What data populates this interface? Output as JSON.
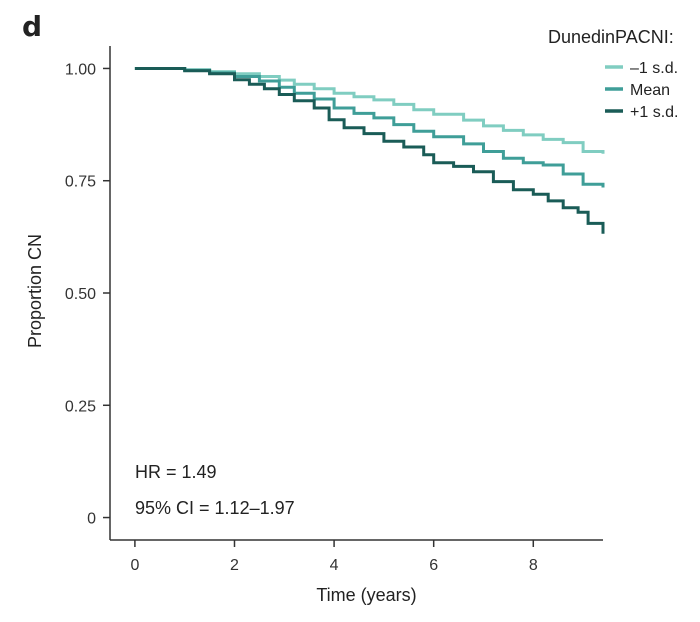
{
  "panel_label": "d",
  "chart_data": {
    "type": "line",
    "step": true,
    "xlabel": "Time (years)",
    "ylabel": "Proportion CN",
    "xlim": [
      -0.5,
      9.4
    ],
    "ylim": [
      -0.05,
      1.05
    ],
    "xticks": [
      0,
      2,
      4,
      6,
      8
    ],
    "yticks": [
      0,
      0.25,
      0.5,
      0.75,
      1.0
    ],
    "yticklabels": [
      "0",
      "0.25",
      "0.50",
      "0.75",
      "1.00"
    ],
    "grid": false,
    "legend": {
      "title": "DunedinPACNI:",
      "placement": "top-right"
    },
    "annotations": [
      "HR = 1.49",
      "95% CI = 1.12–1.97"
    ],
    "series": [
      {
        "name": "–1 s.d.",
        "color": "#80cdc1",
        "x": [
          0,
          1.0,
          1.5,
          2.0,
          2.5,
          2.9,
          3.2,
          3.6,
          4.0,
          4.4,
          4.8,
          5.2,
          5.6,
          6.0,
          6.6,
          7.0,
          7.4,
          7.8,
          8.2,
          8.6,
          9.0,
          9.4
        ],
        "y": [
          1.0,
          0.997,
          0.993,
          0.988,
          0.982,
          0.974,
          0.965,
          0.955,
          0.945,
          0.937,
          0.93,
          0.92,
          0.908,
          0.898,
          0.885,
          0.872,
          0.862,
          0.852,
          0.842,
          0.835,
          0.815,
          0.81
        ]
      },
      {
        "name": "Mean",
        "color": "#3f9e98",
        "x": [
          0,
          1.0,
          1.5,
          2.0,
          2.5,
          2.9,
          3.2,
          3.6,
          4.0,
          4.4,
          4.8,
          5.2,
          5.6,
          6.0,
          6.6,
          7.0,
          7.4,
          7.8,
          8.2,
          8.6,
          9.0,
          9.4
        ],
        "y": [
          1.0,
          0.996,
          0.99,
          0.982,
          0.972,
          0.958,
          0.945,
          0.932,
          0.912,
          0.9,
          0.89,
          0.875,
          0.86,
          0.848,
          0.832,
          0.815,
          0.8,
          0.79,
          0.785,
          0.765,
          0.742,
          0.735
        ]
      },
      {
        "name": "+1 s.d.",
        "color": "#1a5c57",
        "x": [
          0,
          1.0,
          1.5,
          2.0,
          2.3,
          2.6,
          2.9,
          3.2,
          3.6,
          3.9,
          4.2,
          4.6,
          5.0,
          5.4,
          5.8,
          6.0,
          6.4,
          6.8,
          7.2,
          7.6,
          8.0,
          8.3,
          8.6,
          8.9,
          9.1,
          9.4
        ],
        "y": [
          1.0,
          0.995,
          0.988,
          0.975,
          0.965,
          0.955,
          0.942,
          0.928,
          0.912,
          0.886,
          0.868,
          0.855,
          0.838,
          0.825,
          0.808,
          0.79,
          0.782,
          0.77,
          0.748,
          0.73,
          0.72,
          0.705,
          0.69,
          0.68,
          0.655,
          0.632
        ]
      }
    ]
  }
}
